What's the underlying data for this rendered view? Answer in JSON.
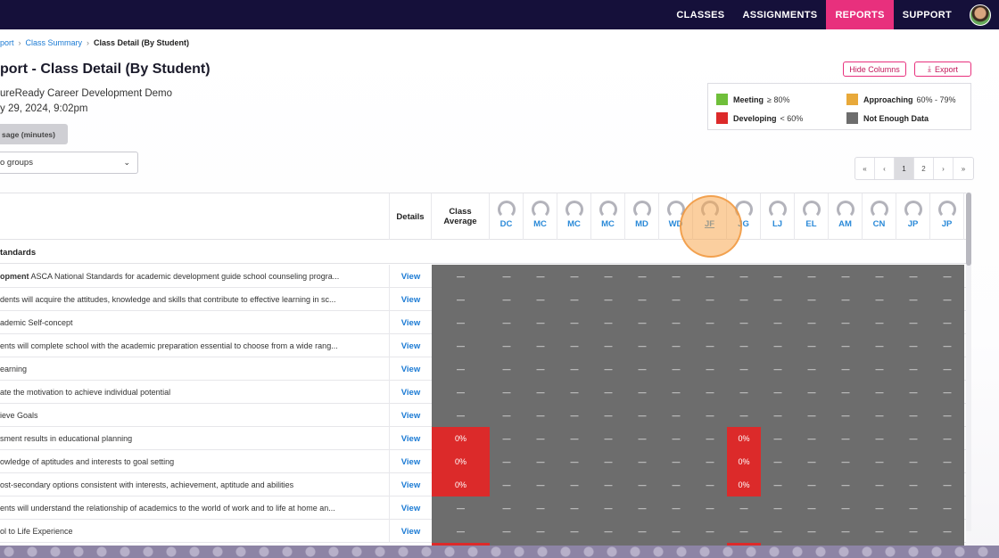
{
  "nav": {
    "items": [
      {
        "label": "CLASSES",
        "active": false
      },
      {
        "label": "ASSIGNMENTS",
        "active": false
      },
      {
        "label": "REPORTS",
        "active": true
      },
      {
        "label": "SUPPORT",
        "active": false
      }
    ]
  },
  "breadcrumb": {
    "root": "port",
    "class_summary": "Class Summary",
    "current": "Class Detail (By Student)"
  },
  "header": {
    "title": "port - Class Detail (By Student)",
    "class_name": "ureReady Career Development Demo",
    "date": "y 29, 2024, 9:02pm",
    "usage_button": "sage (minutes)",
    "groups_select": "o groups"
  },
  "actions": {
    "hide_columns": "Hide Columns",
    "export": "Export"
  },
  "legend": {
    "meeting": {
      "label": "Meeting",
      "range": "≥ 80%",
      "color": "#6fbf3a"
    },
    "approaching": {
      "label": "Approaching",
      "range": "60% - 79%",
      "color": "#e8a93a"
    },
    "developing": {
      "label": "Developing",
      "range": "< 60%",
      "color": "#dc2a2a"
    },
    "not_enough": {
      "label": "Not Enough Data",
      "color": "#6d6d6d"
    }
  },
  "pager": {
    "first": "«",
    "prev": "‹",
    "pages": [
      "1",
      "2"
    ],
    "current": "1",
    "next": "›",
    "last": "»"
  },
  "table": {
    "details_header": "Details",
    "avg_header": "Class Average",
    "section_label": "tandards",
    "students": [
      "DC",
      "MC",
      "MC",
      "MC",
      "MD",
      "WD",
      "JF",
      "JG",
      "LJ",
      "EL",
      "AM",
      "CN",
      "JP",
      "JP"
    ],
    "highlighted_student_index": 6,
    "view_label": "View",
    "dash": "—",
    "rows": [
      {
        "prefix": "opment",
        "label": " ASCA National Standards for academic development guide school counseling progra...",
        "avg": "—",
        "cells": [
          "—",
          "—",
          "—",
          "—",
          "—",
          "—",
          "—",
          "—",
          "—",
          "—",
          "—",
          "—",
          "—",
          "—"
        ]
      },
      {
        "prefix": "",
        "label": "dents will acquire the attitudes, knowledge and skills that contribute to effective learning in sc...",
        "avg": "—",
        "cells": [
          "—",
          "—",
          "—",
          "—",
          "—",
          "—",
          "—",
          "—",
          "—",
          "—",
          "—",
          "—",
          "—",
          "—"
        ]
      },
      {
        "prefix": "",
        "label": "ademic Self-concept",
        "avg": "—",
        "cells": [
          "—",
          "—",
          "—",
          "—",
          "—",
          "—",
          "—",
          "—",
          "—",
          "—",
          "—",
          "—",
          "—",
          "—"
        ]
      },
      {
        "prefix": "",
        "label": "ents will complete school with the academic preparation essential to choose from a wide rang...",
        "avg": "—",
        "cells": [
          "—",
          "—",
          "—",
          "—",
          "—",
          "—",
          "—",
          "—",
          "—",
          "—",
          "—",
          "—",
          "—",
          "—"
        ]
      },
      {
        "prefix": "",
        "label": "earning",
        "avg": "—",
        "cells": [
          "—",
          "—",
          "—",
          "—",
          "—",
          "—",
          "—",
          "—",
          "—",
          "—",
          "—",
          "—",
          "—",
          "—"
        ]
      },
      {
        "prefix": "",
        "label": "ate the motivation to achieve individual potential",
        "avg": "—",
        "cells": [
          "—",
          "—",
          "—",
          "—",
          "—",
          "—",
          "—",
          "—",
          "—",
          "—",
          "—",
          "—",
          "—",
          "—"
        ]
      },
      {
        "prefix": "",
        "label": "ieve Goals",
        "avg": "—",
        "cells": [
          "—",
          "—",
          "—",
          "—",
          "—",
          "—",
          "—",
          "—",
          "—",
          "—",
          "—",
          "—",
          "—",
          "—"
        ]
      },
      {
        "prefix": "",
        "label": "sment results in educational planning",
        "avg": "0%",
        "cells": [
          "—",
          "—",
          "—",
          "—",
          "—",
          "—",
          "—",
          "0%",
          "—",
          "—",
          "—",
          "—",
          "—",
          "—"
        ]
      },
      {
        "prefix": "",
        "label": "owledge of aptitudes and interests to goal setting",
        "avg": "0%",
        "cells": [
          "—",
          "—",
          "—",
          "—",
          "—",
          "—",
          "—",
          "0%",
          "—",
          "—",
          "—",
          "—",
          "—",
          "—"
        ]
      },
      {
        "prefix": "",
        "label": "ost-secondary options consistent with interests, achievement, aptitude and abilities",
        "avg": "0%",
        "cells": [
          "—",
          "—",
          "—",
          "—",
          "—",
          "—",
          "—",
          "0%",
          "—",
          "—",
          "—",
          "—",
          "—",
          "—"
        ]
      },
      {
        "prefix": "",
        "label": "ents will understand the relationship of academics to the world of work and to life at home an...",
        "avg": "—",
        "cells": [
          "—",
          "—",
          "—",
          "—",
          "—",
          "—",
          "—",
          "—",
          "—",
          "—",
          "—",
          "—",
          "—",
          "—"
        ]
      },
      {
        "prefix": "",
        "label": "ol to Life Experience",
        "avg": "—",
        "cells": [
          "—",
          "—",
          "—",
          "—",
          "—",
          "—",
          "—",
          "—",
          "—",
          "—",
          "—",
          "—",
          "—",
          "—"
        ]
      },
      {
        "prefix": "",
        "label": "",
        "avg": "",
        "cells": [
          "",
          "",
          "",
          "",
          "",
          "",
          "",
          "",
          "",
          "",
          "",
          "",
          "",
          ""
        ]
      }
    ]
  }
}
